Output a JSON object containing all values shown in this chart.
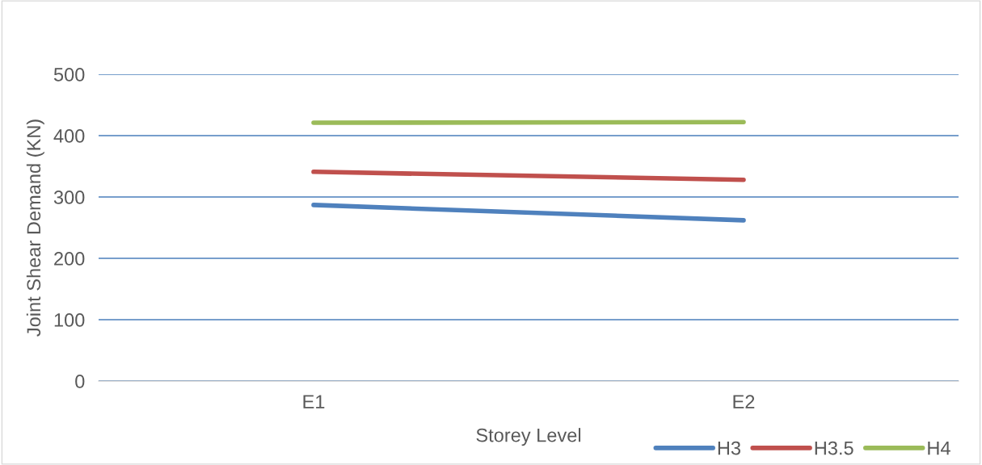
{
  "chart_data": {
    "type": "line",
    "xlabel": "Storey Level",
    "ylabel": "Joint Shear Demand (KN)",
    "categories": [
      "E1",
      "E2"
    ],
    "series": [
      {
        "name": "H3",
        "color": "#4f81bd",
        "values": [
          287,
          262
        ]
      },
      {
        "name": "H3.5",
        "color": "#c0504d",
        "values": [
          341,
          328
        ]
      },
      {
        "name": "H4",
        "color": "#9bbb59",
        "values": [
          421,
          422
        ]
      }
    ],
    "ylim": [
      0,
      500
    ],
    "yticks": [
      0,
      100,
      200,
      300,
      400,
      500
    ],
    "grid": "y",
    "legend": "bottom right",
    "marker": "none",
    "line_style": "solid"
  }
}
